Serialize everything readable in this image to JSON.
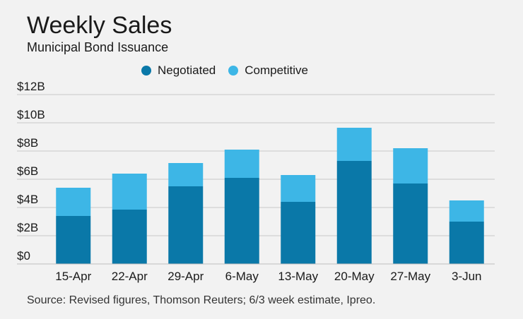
{
  "chart_data": {
    "type": "bar",
    "stacked": true,
    "title": "Weekly Sales",
    "subtitle": "Municipal Bond Issuance",
    "categories": [
      "15-Apr",
      "22-Apr",
      "29-Apr",
      "6-May",
      "13-May",
      "20-May",
      "27-May",
      "3-Jun"
    ],
    "series": [
      {
        "name": "Negotiated",
        "color": "#0a78a8",
        "values": [
          3.4,
          3.85,
          5.5,
          6.1,
          4.4,
          7.3,
          5.7,
          3.0
        ]
      },
      {
        "name": "Competitive",
        "color": "#3db6e6",
        "values": [
          2.0,
          2.55,
          1.65,
          2.0,
          1.9,
          2.35,
          2.5,
          1.5
        ]
      }
    ],
    "ylim": [
      0,
      12
    ],
    "yticks": [
      0,
      2,
      4,
      6,
      8,
      10,
      12
    ],
    "ytick_labels": [
      "$0",
      "$2B",
      "$4B",
      "$6B",
      "$8B",
      "$10B",
      "$12B"
    ],
    "xlabel": "",
    "ylabel": "",
    "grid": true,
    "legend_position": "top-center",
    "source": "Source: Revised figures, Thomson Reuters; 6/3 week estimate, Ipreo."
  }
}
